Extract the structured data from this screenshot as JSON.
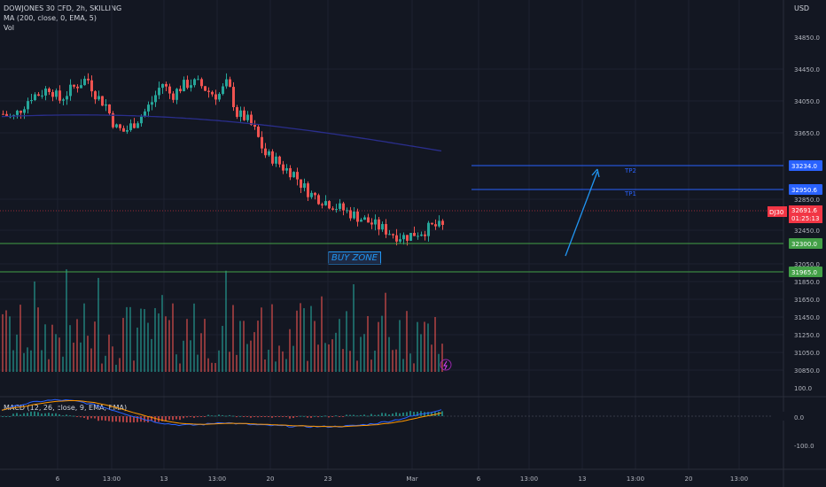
{
  "legend": {
    "title": "DOWJONES 30 CFD, 2h, SKILLING",
    "ma": "MA (200, close, 0, EMA, 5)",
    "vol": "Vol",
    "macd": "MACD (12, 26, close, 9, EMA, EMA)"
  },
  "price_axis": {
    "currency": "USD",
    "ticks": [
      "34850.0",
      "34450.0",
      "34050.0",
      "33650.0",
      "32850.0",
      "32450.0",
      "32050.0",
      "31850.0",
      "31650.0",
      "31450.0",
      "31250.0",
      "31050.0",
      "30850.0"
    ]
  },
  "macd_axis": {
    "ticks": [
      "100.0",
      "0.0",
      "-100.0"
    ]
  },
  "time_axis": {
    "ticks": [
      "6",
      "13:00",
      "13",
      "13:00",
      "20",
      "23",
      "Mar",
      "6",
      "13:00",
      "13",
      "13:00",
      "20",
      "13:00"
    ]
  },
  "levels": [
    {
      "label": "33234.0",
      "color": "#2962ff",
      "caption": "TP2"
    },
    {
      "label": "32950.6",
      "color": "#2962ff",
      "caption": "TP1"
    },
    {
      "label": "32300.0",
      "color": "#43a047",
      "caption": ""
    },
    {
      "label": "31965.0",
      "color": "#43a047",
      "caption": ""
    }
  ],
  "current_price": {
    "symbol": "DJ30",
    "price": "32691.6",
    "countdown": "01:25:13",
    "color": "#f23645"
  },
  "buy_zone_label": "BUY ZONE",
  "colors": {
    "up": "#26a69a",
    "down": "#ef5350",
    "ma": "#2a2e8c",
    "arrow": "#2196f3",
    "macd": "#2962ff",
    "signal": "#ff9800",
    "bg": "#131722"
  },
  "chart_data": {
    "type": "candlestick",
    "close_path": [
      33950,
      33900,
      34020,
      34150,
      34180,
      34250,
      34100,
      34200,
      34280,
      34350,
      34150,
      34050,
      33800,
      33750,
      33850,
      33950,
      34100,
      34300,
      34150,
      34250,
      34300,
      34280,
      34200,
      34150,
      34300,
      33950,
      33900,
      33750,
      33500,
      33450,
      33350,
      33300,
      33150,
      33050,
      33000,
      32950,
      32900,
      32850,
      32800,
      32750,
      32700,
      32650,
      32600,
      32580,
      32620,
      32650,
      32700,
      32690
    ],
    "ma_start": 33920,
    "ma_end": 33560,
    "projection": {
      "from": 32050,
      "to": 33234
    }
  }
}
